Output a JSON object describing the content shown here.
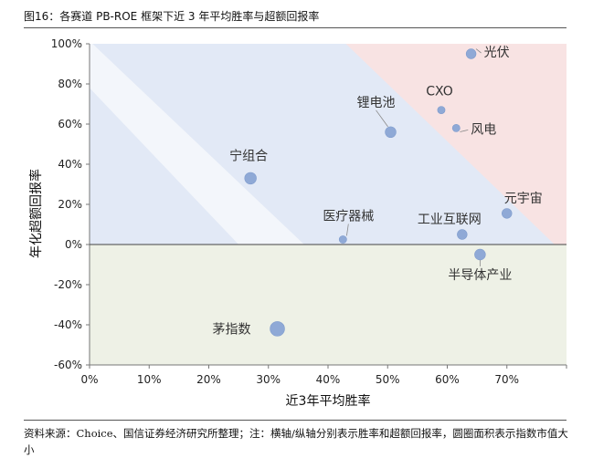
{
  "title": "图16：各赛道 PB-ROE 框架下近 3 年平均胜率与超额回报率",
  "source": "资料来源：Choice、国信证券经济研究所整理；注：横轴/纵轴分别表示胜率和超额回报率，圆圈面积表示指数市值大小",
  "chart_data": {
    "type": "scatter",
    "xlabel": "近3年平均胜率",
    "ylabel": "年化超额回报率",
    "xlim": [
      0,
      0.8
    ],
    "ylim": [
      -0.6,
      1.0
    ],
    "x_ticks": [
      "0%",
      "10%",
      "20%",
      "30%",
      "40%",
      "50%",
      "60%",
      "70%"
    ],
    "y_ticks": [
      "100%",
      "80%",
      "60%",
      "40%",
      "20%",
      "0%",
      "-20%",
      "-40%",
      "-60%"
    ],
    "colors": {
      "point": "#8fa9d6",
      "region_upper_left": "#e2e9f6",
      "region_upper_right": "#f8e3e3",
      "region_lower": "#eef1e6"
    },
    "points": [
      {
        "label": "光伏",
        "x": 0.64,
        "y": 0.95,
        "size": 4
      },
      {
        "label": "CXO",
        "x": 0.59,
        "y": 0.67,
        "size": 2
      },
      {
        "label": "风电",
        "x": 0.615,
        "y": 0.58,
        "size": 2
      },
      {
        "label": "锂电池",
        "x": 0.505,
        "y": 0.56,
        "size": 5
      },
      {
        "label": "宁组合",
        "x": 0.27,
        "y": 0.33,
        "size": 6
      },
      {
        "label": "元宇宙",
        "x": 0.7,
        "y": 0.155,
        "size": 4
      },
      {
        "label": "医疗器械",
        "x": 0.425,
        "y": 0.025,
        "size": 2
      },
      {
        "label": "工业互联网",
        "x": 0.625,
        "y": 0.05,
        "size": 4
      },
      {
        "label": "半导体产业",
        "x": 0.655,
        "y": -0.05,
        "size": 5
      },
      {
        "label": "茅指数",
        "x": 0.315,
        "y": -0.42,
        "size": 10
      }
    ]
  }
}
